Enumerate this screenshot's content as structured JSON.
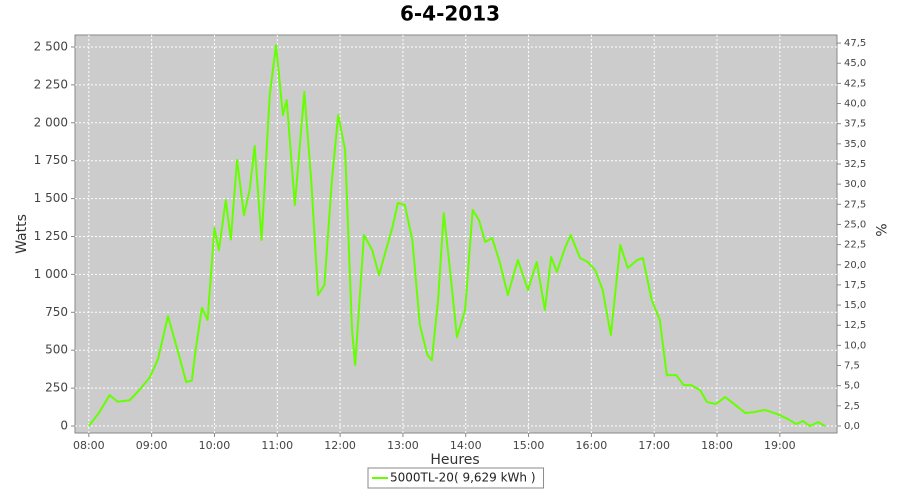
{
  "chart_data": {
    "type": "line",
    "title": "6-4-2013",
    "x_label": "Heures",
    "y_label": "Watts",
    "y2_label": "%",
    "grid": true,
    "legend": "bottom",
    "plot_background": "#cccccc",
    "xlim": [
      7.78,
      19.91
    ],
    "xticks": [
      {
        "value": 8,
        "label": "08:00"
      },
      {
        "value": 9,
        "label": "09:00"
      },
      {
        "value": 10,
        "label": "10:00"
      },
      {
        "value": 11,
        "label": "11:00"
      },
      {
        "value": 12,
        "label": "12:00"
      },
      {
        "value": 13,
        "label": "13:00"
      },
      {
        "value": 14,
        "label": "14:00"
      },
      {
        "value": 15,
        "label": "15:00"
      },
      {
        "value": 16,
        "label": "16:00"
      },
      {
        "value": 17,
        "label": "17:00"
      },
      {
        "value": 18,
        "label": "18:00"
      },
      {
        "value": 19,
        "label": "19:00"
      }
    ],
    "ylim": [
      -46,
      2579
    ],
    "yticks": [
      0,
      250,
      500,
      750,
      {
        "value": 1000,
        "label": "1 000"
      },
      {
        "value": 1250,
        "label": "1 250"
      },
      {
        "value": 1500,
        "label": "1 500"
      },
      {
        "value": 1750,
        "label": "1 750"
      },
      {
        "value": 2000,
        "label": "2 000"
      },
      {
        "value": 2250,
        "label": "2 250"
      },
      {
        "value": 2500,
        "label": "2 500"
      }
    ],
    "y2lim": [
      -0.87,
      48.5
    ],
    "y2ticks": [
      {
        "value": 0,
        "label": "0,0"
      },
      {
        "value": 2.5,
        "label": "2,5"
      },
      {
        "value": 5,
        "label": "5,0"
      },
      {
        "value": 7.5,
        "label": "7,5"
      },
      {
        "value": 10,
        "label": "10,0"
      },
      {
        "value": 12.5,
        "label": "12,5"
      },
      {
        "value": 15,
        "label": "15,0"
      },
      {
        "value": 17.5,
        "label": "17,5"
      },
      {
        "value": 20,
        "label": "20,0"
      },
      {
        "value": 22.5,
        "label": "22,5"
      },
      {
        "value": 25,
        "label": "25,0"
      },
      {
        "value": 27.5,
        "label": "27,5"
      },
      {
        "value": 30,
        "label": "30,0"
      },
      {
        "value": 32.5,
        "label": "32,5"
      },
      {
        "value": 35,
        "label": "35,0"
      },
      {
        "value": 37.5,
        "label": "37,5"
      },
      {
        "value": 40,
        "label": "40,0"
      },
      {
        "value": 42.5,
        "label": "42,5"
      },
      {
        "value": 45,
        "label": "45,0"
      },
      {
        "value": 47.5,
        "label": "47,5"
      }
    ],
    "x": [
      8.0,
      8.17,
      8.33,
      8.46,
      8.65,
      8.81,
      8.97,
      9.1,
      9.26,
      9.42,
      9.55,
      9.64,
      9.7,
      9.8,
      9.89,
      10.0,
      10.07,
      10.18,
      10.26,
      10.36,
      10.47,
      10.56,
      10.64,
      10.75,
      10.88,
      10.98,
      11.09,
      11.15,
      11.28,
      11.43,
      11.54,
      11.65,
      11.75,
      11.87,
      11.97,
      12.08,
      12.19,
      12.24,
      12.38,
      12.51,
      12.62,
      12.73,
      12.83,
      12.92,
      13.03,
      13.15,
      13.27,
      13.39,
      13.46,
      13.56,
      13.65,
      13.75,
      13.86,
      13.99,
      14.11,
      14.21,
      14.31,
      14.42,
      14.54,
      14.67,
      14.83,
      14.99,
      15.13,
      15.26,
      15.36,
      15.45,
      15.58,
      15.67,
      15.82,
      15.94,
      16.06,
      16.18,
      16.31,
      16.46,
      16.58,
      16.73,
      16.82,
      16.96,
      17.09,
      17.2,
      17.35,
      17.47,
      17.59,
      17.73,
      17.84,
      17.98,
      18.13,
      18.29,
      18.45,
      18.6,
      18.76,
      18.96,
      19.13,
      19.26,
      19.37,
      19.48,
      19.61,
      19.72
    ],
    "series": [
      {
        "name": "5000TL-20( 9,629 kWh )",
        "color": "#66ff00",
        "values": [
          0,
          92,
          204,
          160,
          170,
          240,
          320,
          440,
          725,
          490,
          290,
          300,
          500,
          780,
          700,
          1306,
          1160,
          1490,
          1230,
          1755,
          1390,
          1557,
          1847,
          1227,
          2183,
          2513,
          2051,
          2150,
          1458,
          2203,
          1623,
          864,
          930,
          1623,
          2051,
          1820,
          633,
          402,
          1260,
          1161,
          996,
          1161,
          1306,
          1471,
          1458,
          1227,
          666,
          468,
          435,
          831,
          1405,
          1029,
          587,
          765,
          1425,
          1359,
          1214,
          1240,
          1082,
          864,
          1095,
          897,
          1082,
          765,
          1115,
          1016,
          1174,
          1260,
          1108,
          1082,
          1029,
          897,
          600,
          1194,
          1042,
          1095,
          1108,
          831,
          699,
          336,
          336,
          270,
          270,
          237,
          158,
          145,
          191,
          139,
          86,
          92,
          106,
          79,
          46,
          13,
          33,
          0,
          26,
          0
        ]
      }
    ]
  }
}
